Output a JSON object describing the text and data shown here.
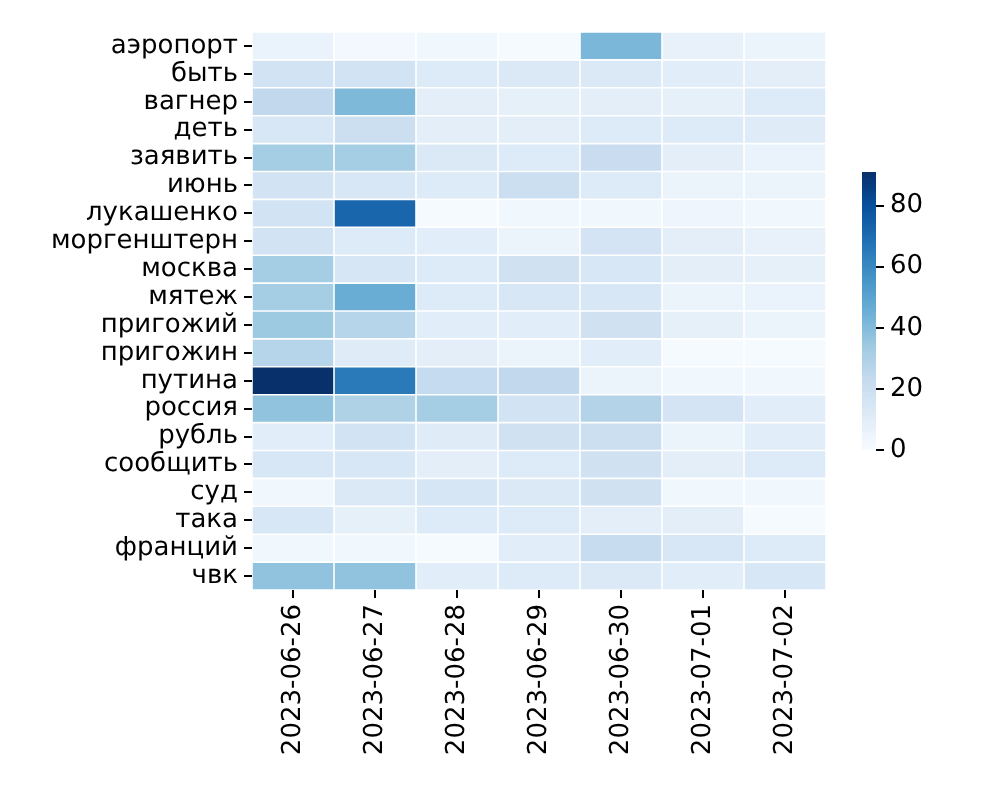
{
  "chart_data": {
    "type": "heatmap",
    "categories": [
      "2023-06-26",
      "2023-06-27",
      "2023-06-28",
      "2023-06-29",
      "2023-06-30",
      "2023-07-01",
      "2023-07-02"
    ],
    "y_categories": [
      "аэропорт",
      "быть",
      "вагнер",
      "деть",
      "заявить",
      "июнь",
      "лукашенко",
      "моргенштерн",
      "москва",
      "мятеж",
      "пригожий",
      "пригожин",
      "путина",
      "россия",
      "рубль",
      "сообщить",
      "суд",
      "така",
      "франций",
      "чвк"
    ],
    "cells": [
      [
        6,
        2,
        3,
        1,
        42,
        7,
        5
      ],
      [
        17,
        17,
        12,
        13,
        13,
        10,
        9
      ],
      [
        24,
        41,
        9,
        8,
        9,
        8,
        12
      ],
      [
        14,
        20,
        9,
        9,
        12,
        12,
        11
      ],
      [
        32,
        32,
        13,
        12,
        21,
        9,
        6
      ],
      [
        17,
        14,
        12,
        20,
        12,
        5,
        5
      ],
      [
        17,
        72,
        1,
        3,
        3,
        4,
        3
      ],
      [
        17,
        12,
        10,
        5,
        16,
        9,
        7
      ],
      [
        32,
        15,
        12,
        18,
        14,
        9,
        8
      ],
      [
        32,
        46,
        12,
        14,
        14,
        5,
        6
      ],
      [
        34,
        27,
        10,
        10,
        18,
        8,
        5
      ],
      [
        27,
        11,
        9,
        5,
        10,
        1,
        1
      ],
      [
        91,
        65,
        23,
        24,
        5,
        3,
        3
      ],
      [
        37,
        29,
        32,
        17,
        28,
        16,
        10
      ],
      [
        10,
        17,
        11,
        18,
        20,
        5,
        10
      ],
      [
        14,
        14,
        9,
        12,
        18,
        9,
        12
      ],
      [
        3,
        13,
        15,
        13,
        18,
        3,
        3
      ],
      [
        14,
        8,
        12,
        12,
        9,
        9,
        1
      ],
      [
        3,
        3,
        1,
        10,
        22,
        14,
        12
      ],
      [
        37,
        37,
        10,
        12,
        13,
        10,
        14
      ]
    ],
    "clim": [
      0,
      91
    ],
    "cticks": [
      0,
      20,
      40,
      60,
      80
    ]
  }
}
